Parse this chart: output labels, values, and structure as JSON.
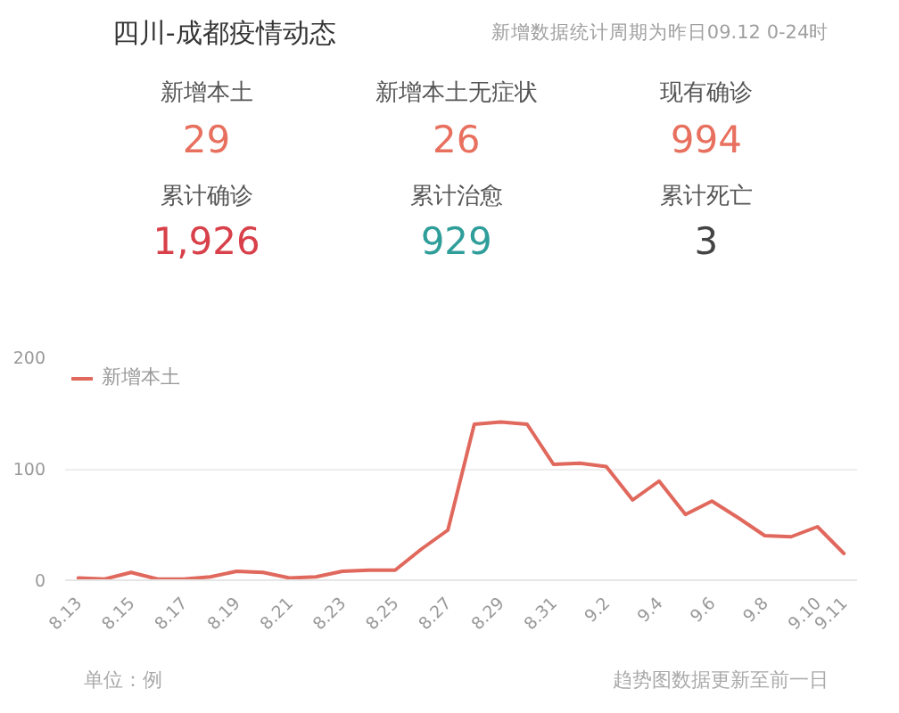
{
  "chart_data": [
    {
      "type": "other",
      "title": "四川-成都疫情动态",
      "subtitle": "新增数据统计周期为昨日09.12 0-24时",
      "categories": [
        "新增本土",
        "新增本土无症状",
        "现有确诊",
        "累计确诊",
        "累计治愈",
        "累计死亡"
      ],
      "value_labels": [
        "29",
        "26",
        "994",
        "1,926",
        "929",
        "3"
      ],
      "colors": [
        "#e8705f",
        "#e8705f",
        "#e8705f",
        "#d8404a",
        "#2f9e9a",
        "#444444"
      ]
    },
    {
      "type": "line",
      "categories": [
        "8.13",
        null,
        "8.15",
        null,
        "8.17",
        null,
        "8.19",
        null,
        "8.21",
        null,
        "8.23",
        null,
        "8.25",
        null,
        "8.27",
        null,
        "8.29",
        null,
        "8.31",
        null,
        "9.2",
        null,
        "9.4",
        null,
        "9.6",
        null,
        "9.8",
        null,
        "9.10",
        "9.11"
      ],
      "series": [
        {
          "name": "新增本土",
          "color": "#e0685c",
          "values": [
            2,
            1,
            7,
            1,
            1,
            3,
            8,
            7,
            2,
            3,
            8,
            9,
            9,
            28,
            45,
            140,
            142,
            140,
            104,
            105,
            102,
            72,
            89,
            59,
            71,
            56,
            40,
            39,
            48,
            24
          ]
        }
      ],
      "ylim": [
        0,
        200
      ],
      "yticks": [
        0,
        100,
        200
      ],
      "grid": "y",
      "legend": "top left",
      "annotations": [
        "单位：例",
        "趋势图数据更新至前一日"
      ]
    }
  ]
}
